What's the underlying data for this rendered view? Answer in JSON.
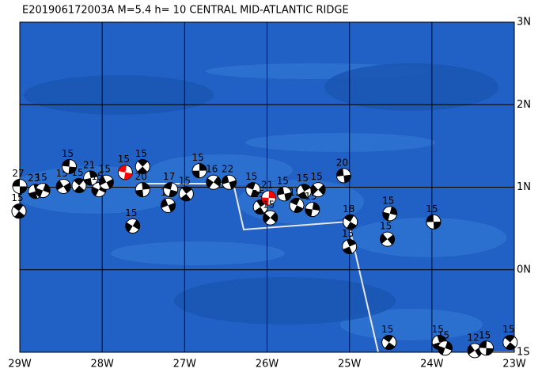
{
  "map": {
    "title": "E201906172003A  M=5.4  h= 10 CENTRAL MID-ATLANTIC RIDGE",
    "xlim": [
      -29,
      -23
    ],
    "ylim": [
      -1,
      3
    ],
    "xticks": [
      {
        "value": -29,
        "label": "29W"
      },
      {
        "value": -28,
        "label": "28W"
      },
      {
        "value": -27,
        "label": "27W"
      },
      {
        "value": -26,
        "label": "26W"
      },
      {
        "value": -25,
        "label": "25W"
      },
      {
        "value": -24,
        "label": "24W"
      },
      {
        "value": -23,
        "label": "23W"
      }
    ],
    "yticks": [
      {
        "value": 3,
        "label": "3N"
      },
      {
        "value": 2,
        "label": "2N"
      },
      {
        "value": 1,
        "label": "1N"
      },
      {
        "value": 0,
        "label": "0N"
      },
      {
        "value": -1,
        "label": "1S"
      }
    ],
    "grid": true,
    "events": [
      {
        "lon": -29.0,
        "lat": 1.01,
        "depth": 27,
        "color": "black"
      },
      {
        "lon": -29.01,
        "lat": 0.71,
        "depth": 15,
        "color": "black"
      },
      {
        "lon": -28.81,
        "lat": 0.95,
        "depth": 23,
        "color": "black"
      },
      {
        "lon": -28.72,
        "lat": 0.96,
        "depth": 15,
        "color": "black"
      },
      {
        "lon": -28.47,
        "lat": 1.01,
        "depth": 15,
        "color": "black"
      },
      {
        "lon": -28.4,
        "lat": 1.25,
        "depth": 15,
        "color": "black"
      },
      {
        "lon": -28.28,
        "lat": 1.02,
        "depth": 15,
        "color": "black"
      },
      {
        "lon": -28.14,
        "lat": 1.11,
        "depth": 21,
        "color": "black"
      },
      {
        "lon": -28.04,
        "lat": 0.97,
        "depth": 15,
        "color": "black"
      },
      {
        "lon": -27.95,
        "lat": 1.06,
        "depth": 15,
        "color": "black"
      },
      {
        "lon": -27.72,
        "lat": 1.18,
        "depth": 15,
        "color": "red"
      },
      {
        "lon": -27.51,
        "lat": 1.25,
        "depth": 15,
        "color": "black"
      },
      {
        "lon": -27.51,
        "lat": 0.97,
        "depth": 20,
        "color": "black"
      },
      {
        "lon": -27.63,
        "lat": 0.53,
        "depth": 15,
        "color": "black"
      },
      {
        "lon": -27.2,
        "lat": 0.78,
        "depth": 19,
        "color": "black"
      },
      {
        "lon": -27.17,
        "lat": 0.97,
        "depth": 17,
        "color": "black"
      },
      {
        "lon": -26.98,
        "lat": 0.92,
        "depth": 15,
        "color": "black"
      },
      {
        "lon": -26.82,
        "lat": 1.2,
        "depth": 15,
        "color": "black"
      },
      {
        "lon": -26.65,
        "lat": 1.06,
        "depth": 16,
        "color": "black"
      },
      {
        "lon": -26.46,
        "lat": 1.06,
        "depth": 22,
        "color": "black"
      },
      {
        "lon": -26.17,
        "lat": 0.97,
        "depth": 15,
        "color": "black"
      },
      {
        "lon": -26.08,
        "lat": 0.76,
        "depth": 15,
        "color": "black"
      },
      {
        "lon": -25.98,
        "lat": 0.87,
        "depth": 21,
        "color": "red"
      },
      {
        "lon": -25.96,
        "lat": 0.63,
        "depth": 15,
        "color": "black"
      },
      {
        "lon": -25.79,
        "lat": 0.92,
        "depth": 15,
        "color": "black"
      },
      {
        "lon": -25.64,
        "lat": 0.78,
        "depth": 15,
        "color": "black"
      },
      {
        "lon": -25.55,
        "lat": 0.95,
        "depth": 15,
        "color": "black"
      },
      {
        "lon": -25.45,
        "lat": 0.73,
        "depth": 15,
        "color": "black"
      },
      {
        "lon": -25.38,
        "lat": 0.97,
        "depth": 15,
        "color": "black"
      },
      {
        "lon": -25.07,
        "lat": 1.14,
        "depth": 20,
        "color": "black"
      },
      {
        "lon": -24.99,
        "lat": 0.58,
        "depth": 18,
        "color": "black"
      },
      {
        "lon": -25.0,
        "lat": 0.28,
        "depth": 15,
        "color": "black"
      },
      {
        "lon": -24.51,
        "lat": 0.68,
        "depth": 15,
        "color": "black"
      },
      {
        "lon": -24.54,
        "lat": 0.37,
        "depth": 15,
        "color": "black"
      },
      {
        "lon": -23.98,
        "lat": 0.58,
        "depth": 15,
        "color": "black"
      },
      {
        "lon": -24.52,
        "lat": -0.88,
        "depth": 15,
        "color": "black"
      },
      {
        "lon": -23.91,
        "lat": -0.88,
        "depth": 15,
        "color": "black"
      },
      {
        "lon": -23.84,
        "lat": -0.95,
        "depth": 15,
        "color": "black"
      },
      {
        "lon": -23.48,
        "lat": -0.98,
        "depth": 12,
        "color": "black"
      },
      {
        "lon": -23.34,
        "lat": -0.95,
        "depth": 15,
        "color": "black"
      },
      {
        "lon": -23.05,
        "lat": -0.88,
        "depth": 15,
        "color": "black"
      }
    ]
  }
}
